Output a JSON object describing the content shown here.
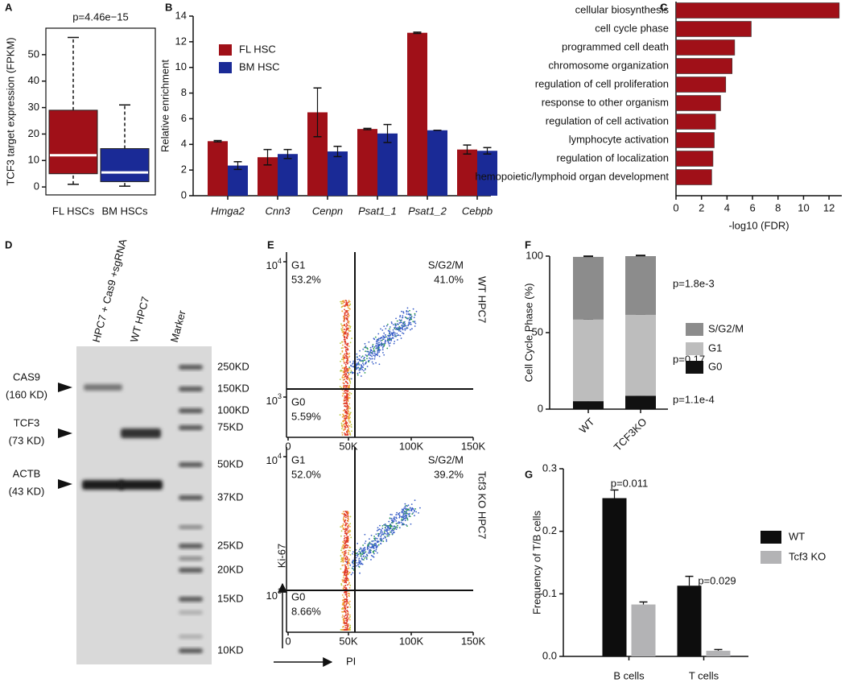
{
  "chart_data": [
    {
      "panel": "A",
      "type": "box",
      "title": "p=4.46e−15",
      "ylabel": "TCF3 target expression (FPKM)",
      "categories": [
        "FL HSCs",
        "BM HSCs"
      ],
      "boxes": [
        {
          "color": "#a01018",
          "whisker_low": 1,
          "q1": 5,
          "median": 12,
          "q3": 29,
          "whisker_high": 56.5
        },
        {
          "color": "#1a2a96",
          "whisker_low": 0.3,
          "q1": 2,
          "median": 5.5,
          "q3": 14.5,
          "whisker_high": 31
        }
      ],
      "median_color": "#ffffff",
      "ylim": [
        -3,
        60
      ],
      "yticks": [
        0,
        10,
        20,
        30,
        40,
        50
      ]
    },
    {
      "panel": "B",
      "type": "bar",
      "ylabel": "Relative enrichment",
      "categories": [
        "Hmga2",
        "Cnn3",
        "Cenpn",
        "Psat1_1",
        "Psat1_2",
        "Cebpb"
      ],
      "series": [
        {
          "name": "FL HSC",
          "color": "#a01018",
          "values": [
            4.25,
            3.0,
            6.5,
            5.2,
            12.7,
            3.6
          ],
          "errors": [
            0.05,
            0.6,
            1.9,
            0.05,
            0.05,
            0.35
          ]
        },
        {
          "name": "BM HSC",
          "color": "#1a2a96",
          "values": [
            2.35,
            3.25,
            3.45,
            4.85,
            5.1,
            3.5
          ],
          "errors": [
            0.3,
            0.35,
            0.4,
            0.7,
            0,
            0.25
          ]
        }
      ],
      "ylim": [
        0,
        14
      ],
      "yticks": [
        0,
        2,
        4,
        6,
        8,
        10,
        12,
        14
      ]
    },
    {
      "panel": "C",
      "type": "barh",
      "xlabel": "-log10 (FDR)",
      "categories": [
        "cellular biosynthesis",
        "cell cycle phase",
        "programmed cell death",
        "chromosome organization",
        "regulation of cell proliferation",
        "response to other organism",
        "regulation of cell activation",
        "lymphocyte activation",
        "regulation of localization",
        "hemopoietic/lymphoid organ development"
      ],
      "values": [
        12.8,
        5.9,
        4.6,
        4.4,
        3.9,
        3.5,
        3.1,
        3.0,
        2.9,
        2.8
      ],
      "color": "#a01018",
      "xlim": [
        0,
        13
      ],
      "xticks": [
        0,
        2,
        4,
        6,
        8,
        10,
        12
      ]
    },
    {
      "panel": "F",
      "type": "stacked_bar",
      "ylabel": "Cell Cycle Phase (%)",
      "categories": [
        "WT",
        "TCF3KO"
      ],
      "series": [
        {
          "name": "G0",
          "color": "#111111",
          "values": [
            5.2,
            8.7
          ],
          "errors": [
            0.8,
            0.6
          ],
          "p_value": "p=1.1e-4"
        },
        {
          "name": "G1",
          "color": "#bdbdbd",
          "values": [
            53.3,
            52.9
          ],
          "errors": [
            0.5,
            0.5
          ],
          "p_value": "p=0.17"
        },
        {
          "name": "S/G2/M",
          "color": "#8c8c8c",
          "values": [
            41.0,
            38.4
          ],
          "errors": [
            0.4,
            0.4
          ],
          "p_value": "p=1.8e-3"
        }
      ],
      "ylim": [
        0,
        100
      ],
      "yticks": [
        0,
        50,
        100
      ]
    },
    {
      "panel": "G",
      "type": "bar",
      "ylabel": "Frequency of T/B cells",
      "categories": [
        "B cells",
        "T cells"
      ],
      "series": [
        {
          "name": "WT",
          "color": "#0d0d0d",
          "values": [
            0.253,
            0.113
          ],
          "errors": [
            0.013,
            0.015
          ]
        },
        {
          "name": "Tcf3 KO",
          "color": "#b3b3b5",
          "values": [
            0.083,
            0.009
          ],
          "errors": [
            0.004,
            0.002
          ]
        }
      ],
      "p_values": [
        "p=0.011",
        "p=0.029"
      ],
      "ylim": [
        0,
        0.3
      ],
      "yticks": [
        {
          "value": 0,
          "label": "0.0"
        },
        0.1,
        0.2,
        0.3
      ]
    }
  ],
  "blot": {
    "panel": "D",
    "lanes": [
      "HPC7 + Cas9 +sgRNA",
      "WT HPC7",
      "Marker"
    ],
    "proteins": [
      {
        "name": "CAS9",
        "size": "(160 KD)"
      },
      {
        "name": "TCF3",
        "size": "(73 KD)"
      },
      {
        "name": "ACTB",
        "size": "(43 KD)"
      }
    ],
    "markers": [
      "250KD",
      "150KD",
      "100KD",
      "75KD",
      "50KD",
      "37KD",
      "25KD",
      "20KD",
      "15KD",
      "10KD"
    ]
  },
  "flow": {
    "panel": "E",
    "xlabel": "PI",
    "ylabel": "Ki-67",
    "xticks": [
      "0",
      "50K",
      "100K",
      "150K"
    ],
    "yticks": [
      {
        "base": "10",
        "exponent": "4"
      },
      {
        "base": "10",
        "exponent": "3"
      }
    ],
    "plots": [
      {
        "name": "WT HPC7",
        "quadrants": [
          {
            "name": "G1",
            "value": "53.2%"
          },
          {
            "name": "S/G2/M",
            "value": "41.0%"
          },
          {
            "name": "G0",
            "value": "5.59%"
          }
        ]
      },
      {
        "name": "Tcf3 KO HPC7",
        "quadrants": [
          {
            "name": "G1",
            "value": "52.0%"
          },
          {
            "name": "S/G2/M",
            "value": "39.2%"
          },
          {
            "name": "G0",
            "value": "8.66%"
          }
        ]
      }
    ]
  }
}
